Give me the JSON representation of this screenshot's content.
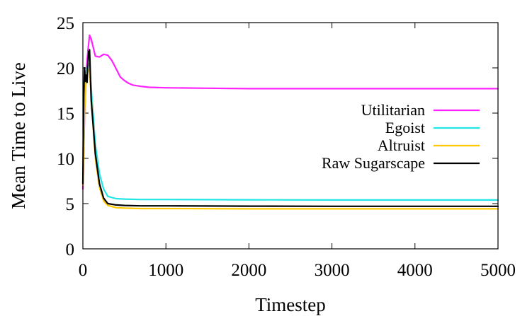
{
  "chart_data": {
    "type": "line",
    "title": "",
    "xlabel": "Timestep",
    "ylabel": "Mean Time to Live",
    "xlim": [
      0,
      5000
    ],
    "ylim": [
      0,
      25
    ],
    "xticks": [
      "0",
      "1000",
      "2000",
      "3000",
      "4000",
      "5000"
    ],
    "yticks": [
      "0",
      "5",
      "10",
      "15",
      "20",
      "25"
    ],
    "grid": false,
    "legend_position": "right",
    "series": [
      {
        "name": "Utilitarian",
        "color": "#ff22ff",
        "x": [
          0,
          20,
          40,
          60,
          80,
          100,
          150,
          200,
          250,
          300,
          350,
          400,
          450,
          500,
          550,
          600,
          700,
          800,
          1000,
          1500,
          2000,
          3000,
          4000,
          5000
        ],
        "y": [
          6.6,
          14.5,
          19.5,
          21.8,
          23.6,
          23.2,
          21.3,
          21.2,
          21.5,
          21.4,
          20.8,
          19.9,
          19.0,
          18.6,
          18.3,
          18.1,
          17.95,
          17.85,
          17.8,
          17.75,
          17.7,
          17.7,
          17.7,
          17.7
        ]
      },
      {
        "name": "Egoist",
        "color": "#22e6e6",
        "x": [
          0,
          20,
          40,
          60,
          80,
          100,
          150,
          200,
          250,
          300,
          400,
          500,
          700,
          1000,
          2000,
          3000,
          4000,
          5000
        ],
        "y": [
          7.2,
          15.5,
          19.5,
          20.2,
          20.5,
          17.8,
          11.5,
          8.3,
          6.6,
          5.8,
          5.55,
          5.5,
          5.45,
          5.45,
          5.42,
          5.4,
          5.4,
          5.4
        ]
      },
      {
        "name": "Altruist",
        "color": "#ffc800",
        "x": [
          0,
          20,
          40,
          60,
          80,
          100,
          150,
          200,
          250,
          300,
          400,
          500,
          700,
          1000,
          2000,
          3000,
          4000,
          5000
        ],
        "y": [
          7.0,
          15.0,
          19.0,
          19.6,
          19.9,
          16.8,
          10.0,
          6.8,
          5.3,
          4.8,
          4.55,
          4.5,
          4.45,
          4.45,
          4.42,
          4.42,
          4.42,
          4.42
        ]
      },
      {
        "name": "Raw Sugarscape",
        "color": "#000000",
        "x": [
          0,
          10,
          20,
          30,
          40,
          50,
          60,
          70,
          80,
          90,
          100,
          150,
          200,
          250,
          300,
          400,
          500,
          700,
          1000,
          2000,
          3000,
          4000,
          5000
        ],
        "y": [
          7.2,
          17.0,
          20.0,
          18.5,
          19.2,
          18.4,
          20.5,
          21.8,
          22.0,
          19.5,
          16.5,
          10.5,
          7.2,
          5.6,
          5.0,
          4.85,
          4.8,
          4.75,
          4.75,
          4.72,
          4.7,
          4.7,
          4.7
        ]
      }
    ]
  }
}
